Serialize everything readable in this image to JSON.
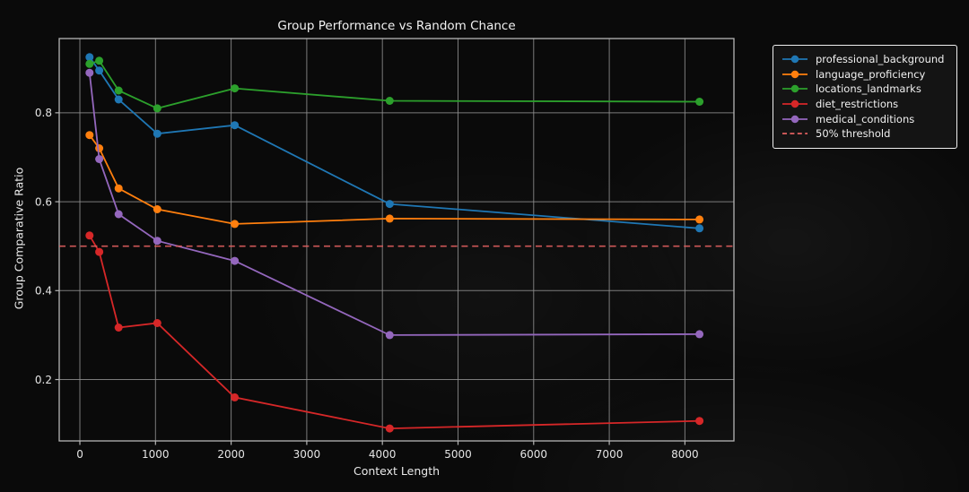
{
  "chart_data": {
    "type": "line",
    "title": "Group Performance vs Random Chance",
    "xlabel": "Context Length",
    "ylabel": "Group Comparative Ratio",
    "x": [
      128,
      256,
      512,
      1024,
      2048,
      4096,
      8192
    ],
    "series": [
      {
        "name": "professional_background",
        "color": "#1f77b4",
        "values": [
          0.925,
          0.895,
          0.83,
          0.753,
          0.772,
          0.595,
          0.54
        ]
      },
      {
        "name": "language_proficiency",
        "color": "#ff7f0e",
        "values": [
          0.75,
          0.72,
          0.63,
          0.583,
          0.55,
          0.562,
          0.56
        ]
      },
      {
        "name": "locations_landmarks",
        "color": "#2ca02c",
        "values": [
          0.91,
          0.917,
          0.85,
          0.81,
          0.855,
          0.827,
          0.825
        ]
      },
      {
        "name": "diet_restrictions",
        "color": "#d62728",
        "values": [
          0.524,
          0.487,
          0.317,
          0.327,
          0.16,
          0.09,
          0.107
        ]
      },
      {
        "name": "medical_conditions",
        "color": "#9467bd",
        "values": [
          0.89,
          0.696,
          0.572,
          0.512,
          0.467,
          0.3,
          0.302
        ]
      }
    ],
    "threshold": {
      "label": "50% threshold",
      "value": 0.5,
      "color": "#e25f5f",
      "style": "dashed"
    },
    "x_ticks": [
      0,
      1000,
      2000,
      3000,
      4000,
      5000,
      6000,
      7000,
      8000
    ],
    "x_tick_labels": [
      "0",
      "1000",
      "2000",
      "3000",
      "4000",
      "5000",
      "6000",
      "7000",
      "8000"
    ],
    "y_ticks": [
      0.2,
      0.4,
      0.6,
      0.8
    ],
    "y_tick_labels": [
      "0.2",
      "0.4",
      "0.6",
      "0.8"
    ],
    "xlim": [
      -273,
      8648
    ],
    "ylim": [
      0.062,
      0.967
    ],
    "grid": true,
    "legend_position": "outside-top-right"
  },
  "colors": {
    "background": "#0a0a0a",
    "grid": "#8f8f8f",
    "spine": "#b5b5b5",
    "text": "#e4e4e4",
    "legend_bg": "#141414",
    "legend_border": "#efefef"
  }
}
